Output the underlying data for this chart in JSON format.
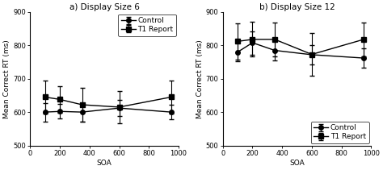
{
  "panel_a_title": "a) Display Size 6",
  "panel_b_title": "b) Display Size 12",
  "xlabel": "SOA",
  "ylabel": "Mean Correct RT (ms)",
  "xvalues": [
    100,
    200,
    350,
    600,
    950
  ],
  "ylim": [
    500,
    900
  ],
  "yticks": [
    500,
    600,
    700,
    800,
    900
  ],
  "xlim": [
    0,
    1000
  ],
  "xticks": [
    0,
    200,
    400,
    600,
    800,
    1000
  ],
  "panel_a": {
    "control_y": [
      600,
      602,
      600,
      612,
      600
    ],
    "control_err": [
      28,
      22,
      28,
      25,
      22
    ],
    "t1_y": [
      645,
      638,
      622,
      615,
      645
    ],
    "t1_err": [
      50,
      40,
      50,
      48,
      50
    ]
  },
  "panel_b": {
    "control_y": [
      780,
      808,
      785,
      772,
      762
    ],
    "control_err": [
      28,
      35,
      30,
      28,
      30
    ],
    "t1_y": [
      812,
      818,
      818,
      773,
      818
    ],
    "t1_err": [
      55,
      52,
      50,
      65,
      50
    ]
  },
  "control_color": "#000000",
  "t1_color": "#000000",
  "control_marker": "o",
  "t1_marker": "s",
  "line_width": 1.0,
  "marker_size": 4,
  "capsize": 2,
  "elinewidth": 0.8,
  "title_fontsize": 7.5,
  "label_fontsize": 6.5,
  "tick_fontsize": 6,
  "legend_fontsize": 6.5
}
